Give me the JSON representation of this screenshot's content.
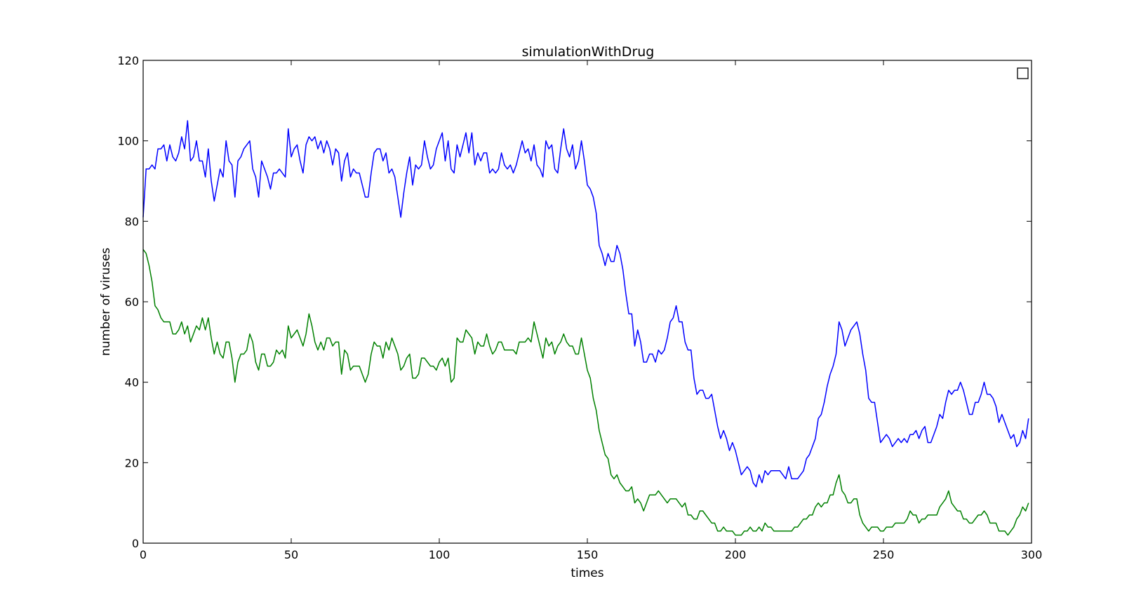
{
  "chart_data": {
    "type": "line",
    "title": "simulationWithDrug",
    "xlabel": "times",
    "ylabel": "number of viruses",
    "xlim": [
      0,
      300
    ],
    "ylim": [
      0,
      120
    ],
    "xticks": [
      0,
      50,
      100,
      150,
      200,
      250,
      300
    ],
    "yticks": [
      0,
      20,
      40,
      60,
      80,
      100,
      120
    ],
    "grid": false,
    "legend": "top-right, empty",
    "series": [
      {
        "color": "#0000ff",
        "x_step": 1,
        "values": [
          81,
          93,
          93,
          94,
          93,
          98,
          98,
          99,
          95,
          99,
          96,
          95,
          97,
          101,
          98,
          105,
          95,
          96,
          100,
          95,
          95,
          91,
          98,
          90,
          85,
          89,
          93,
          91,
          100,
          95,
          94,
          86,
          95,
          96,
          98,
          99,
          100,
          93,
          91,
          86,
          95,
          93,
          91,
          88,
          92,
          92,
          93,
          92,
          91,
          103,
          96,
          98,
          99,
          95,
          92,
          99,
          101,
          100,
          101,
          98,
          100,
          97,
          100,
          98,
          94,
          98,
          97,
          90,
          95,
          97,
          91,
          93,
          92,
          92,
          89,
          86,
          86,
          92,
          97,
          98,
          98,
          95,
          97,
          92,
          93,
          91,
          86,
          81,
          87,
          92,
          96,
          89,
          94,
          93,
          94,
          100,
          96,
          93,
          94,
          98,
          100,
          102,
          95,
          100,
          93,
          92,
          99,
          96,
          99,
          102,
          97,
          102,
          94,
          97,
          95,
          97,
          97,
          92,
          93,
          92,
          93,
          97,
          94,
          93,
          94,
          92,
          94,
          97,
          100,
          97,
          98,
          95,
          99,
          94,
          93,
          91,
          100,
          98,
          99,
          93,
          92,
          98,
          103,
          98,
          96,
          99,
          93,
          95,
          100,
          95,
          89,
          88,
          86,
          82,
          74,
          72,
          69,
          72,
          70,
          70,
          74,
          72,
          68,
          62,
          57,
          57,
          49,
          53,
          50,
          45,
          45,
          47,
          47,
          45,
          48,
          47,
          48,
          51,
          55,
          56,
          59,
          55,
          55,
          50,
          48,
          48,
          41,
          37,
          38,
          38,
          36,
          36,
          37,
          33,
          29,
          26,
          28,
          26,
          23,
          25,
          23,
          20,
          17,
          18,
          19,
          18,
          15,
          14,
          17,
          15,
          18,
          17,
          18,
          18,
          18,
          18,
          17,
          16,
          19,
          16,
          16,
          16,
          17,
          18,
          21,
          22,
          24,
          26,
          31,
          32,
          35,
          39,
          42,
          44,
          47,
          55,
          53,
          49,
          51,
          53,
          54,
          55,
          52,
          47,
          43,
          36,
          35,
          35,
          30,
          25,
          26,
          27,
          26,
          24,
          25,
          26,
          25,
          26,
          25,
          27,
          27,
          28,
          26,
          28,
          29,
          25,
          25,
          27,
          29,
          32,
          31,
          35,
          38,
          37,
          38,
          38,
          40,
          38,
          35,
          32,
          32,
          35,
          35,
          37,
          40,
          37,
          37,
          36,
          34,
          30,
          32,
          30,
          28,
          26,
          27,
          24,
          25,
          28,
          26,
          31
        ]
      },
      {
        "color": "#008000",
        "x_step": 1,
        "values": [
          73,
          72,
          69,
          65,
          59,
          58,
          56,
          55,
          55,
          55,
          52,
          52,
          53,
          55,
          52,
          54,
          50,
          52,
          54,
          53,
          56,
          53,
          56,
          51,
          47,
          50,
          47,
          46,
          50,
          50,
          46,
          40,
          45,
          47,
          47,
          48,
          52,
          50,
          45,
          43,
          47,
          47,
          44,
          44,
          45,
          48,
          47,
          48,
          46,
          54,
          51,
          52,
          53,
          51,
          49,
          52,
          57,
          54,
          50,
          48,
          50,
          48,
          51,
          51,
          49,
          50,
          50,
          42,
          48,
          47,
          43,
          44,
          44,
          44,
          42,
          40,
          42,
          47,
          50,
          49,
          49,
          46,
          50,
          48,
          51,
          49,
          47,
          43,
          44,
          46,
          47,
          41,
          41,
          42,
          46,
          46,
          45,
          44,
          44,
          43,
          45,
          46,
          44,
          46,
          40,
          41,
          51,
          50,
          50,
          53,
          52,
          51,
          47,
          50,
          49,
          49,
          52,
          49,
          47,
          48,
          50,
          50,
          48,
          48,
          48,
          48,
          47,
          50,
          50,
          50,
          51,
          50,
          55,
          52,
          49,
          46,
          51,
          49,
          50,
          47,
          49,
          50,
          52,
          50,
          49,
          49,
          47,
          47,
          51,
          47,
          43,
          41,
          36,
          33,
          28,
          25,
          22,
          21,
          17,
          16,
          17,
          15,
          14,
          13,
          13,
          14,
          10,
          11,
          10,
          8,
          10,
          12,
          12,
          12,
          13,
          12,
          11,
          10,
          11,
          11,
          11,
          10,
          9,
          10,
          7,
          7,
          6,
          6,
          8,
          8,
          7,
          6,
          5,
          5,
          3,
          3,
          4,
          3,
          3,
          3,
          2,
          2,
          2,
          3,
          3,
          4,
          3,
          3,
          4,
          3,
          5,
          4,
          4,
          3,
          3,
          3,
          3,
          3,
          3,
          3,
          4,
          4,
          5,
          6,
          6,
          7,
          7,
          9,
          10,
          9,
          10,
          10,
          12,
          12,
          15,
          17,
          13,
          12,
          10,
          10,
          11,
          11,
          7,
          5,
          4,
          3,
          4,
          4,
          4,
          3,
          3,
          4,
          4,
          4,
          5,
          5,
          5,
          5,
          6,
          8,
          7,
          7,
          5,
          6,
          6,
          7,
          7,
          7,
          7,
          9,
          10,
          11,
          13,
          10,
          9,
          8,
          8,
          6,
          6,
          5,
          5,
          6,
          7,
          7,
          8,
          7,
          5,
          5,
          5,
          3,
          3,
          3,
          2,
          3,
          4,
          6,
          7,
          9,
          8,
          10
        ]
      }
    ]
  }
}
